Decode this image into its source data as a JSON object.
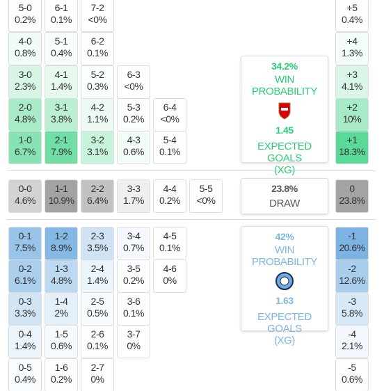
{
  "sections": [
    {
      "rows": [
        {
          "cells": [
            [
              "5-0",
              "0.2%"
            ],
            [
              "6-1",
              "0.1%"
            ],
            [
              "7-2",
              "<0%"
            ]
          ],
          "side": [
            "+5",
            "0.4%"
          ]
        },
        {
          "cells": [
            [
              "4-0",
              "0.8%"
            ],
            [
              "5-1",
              "0.4%"
            ],
            [
              "6-2",
              "0.1%"
            ]
          ],
          "side": [
            "+4",
            "1.3%"
          ]
        },
        {
          "cells": [
            [
              "3-0",
              "2.3%"
            ],
            [
              "4-1",
              "1.4%"
            ],
            [
              "5-2",
              "0.3%"
            ],
            [
              "6-3",
              "<0%"
            ]
          ],
          "side": [
            "+3",
            "4.1%"
          ]
        },
        {
          "cells": [
            [
              "2-0",
              "4.8%"
            ],
            [
              "3-1",
              "3.8%"
            ],
            [
              "4-2",
              "1.1%"
            ],
            [
              "5-3",
              "0.2%"
            ],
            [
              "6-4",
              "<0%"
            ]
          ],
          "side": [
            "+2",
            "10%"
          ]
        },
        {
          "cells": [
            [
              "1-0",
              "6.7%"
            ],
            [
              "2-1",
              "7.9%"
            ],
            [
              "3-2",
              "3.1%"
            ],
            [
              "4-3",
              "0.6%"
            ],
            [
              "5-4",
              "0.1%"
            ]
          ],
          "side": [
            "+1",
            "18.3%"
          ]
        }
      ],
      "card": {
        "win": "34.2%",
        "win_label": "WIN PROBABILITY",
        "xg": "1.45",
        "xg_label": "EXPECTED GOALS",
        "xg_abbr": "(XG)"
      }
    },
    {
      "rows": [
        {
          "cells": [
            [
              "0-0",
              "4.6%"
            ],
            [
              "1-1",
              "10.9%"
            ],
            [
              "2-2",
              "6.4%"
            ],
            [
              "3-3",
              "1.7%"
            ],
            [
              "4-4",
              "0.2%"
            ],
            [
              "5-5",
              "<0%"
            ]
          ],
          "side": [
            "0",
            "23.8%"
          ]
        }
      ],
      "card": {
        "draw": "23.8%",
        "draw_label": "DRAW"
      }
    },
    {
      "rows": [
        {
          "cells": [
            [
              "0-1",
              "7.5%"
            ],
            [
              "1-2",
              "8.9%"
            ],
            [
              "2-3",
              "3.5%"
            ],
            [
              "3-4",
              "0.7%"
            ],
            [
              "4-5",
              "0.1%"
            ]
          ],
          "side": [
            "-1",
            "20.6%"
          ]
        },
        {
          "cells": [
            [
              "0-2",
              "6.1%"
            ],
            [
              "1-3",
              "4.8%"
            ],
            [
              "2-4",
              "1.4%"
            ],
            [
              "3-5",
              "0.2%"
            ],
            [
              "4-6",
              "0%"
            ]
          ],
          "side": [
            "-2",
            "12.6%"
          ]
        },
        {
          "cells": [
            [
              "0-3",
              "3.3%"
            ],
            [
              "1-4",
              "2%"
            ],
            [
              "2-5",
              "0.5%"
            ],
            [
              "3-6",
              "0.1%"
            ]
          ],
          "side": [
            "-3",
            "5.8%"
          ]
        },
        {
          "cells": [
            [
              "0-4",
              "1.4%"
            ],
            [
              "1-5",
              "0.6%"
            ],
            [
              "2-6",
              "0.1%"
            ],
            [
              "3-7",
              "0%"
            ]
          ],
          "side": [
            "-4",
            "2.1%"
          ]
        },
        {
          "cells": [
            [
              "0-5",
              "0.4%"
            ],
            [
              "1-6",
              "0.2%"
            ],
            [
              "2-7",
              "0%"
            ]
          ],
          "side": [
            "-5",
            "0.6%"
          ]
        }
      ],
      "card": {
        "win": "42%",
        "win_label": "WIN PROBABILITY",
        "xg": "1.63",
        "xg_label": "EXPECTED GOALS",
        "xg_abbr": "(XG)"
      }
    }
  ]
}
